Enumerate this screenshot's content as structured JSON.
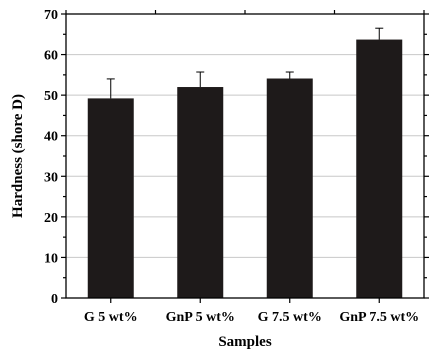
{
  "chart_data": {
    "type": "bar",
    "categories": [
      "G 5 wt%",
      "GnP 5 wt%",
      "G 7.5 wt%",
      "GnP 7.5 wt%"
    ],
    "values": [
      49.2,
      52.0,
      54.1,
      63.7
    ],
    "errors": [
      4.8,
      3.7,
      1.6,
      2.8
    ],
    "xlabel": "Samples",
    "ylabel": "Hardness (shore D)",
    "ylim": [
      0,
      70
    ],
    "yticks": [
      0,
      10,
      20,
      30,
      40,
      50,
      60,
      70
    ],
    "grid": true,
    "bar_color": "#1e1a1a"
  }
}
